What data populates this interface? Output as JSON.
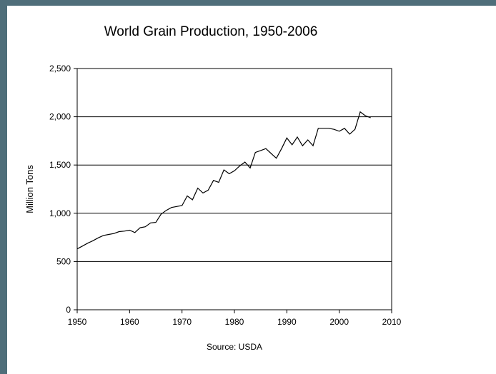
{
  "chart_data": {
    "type": "line",
    "title": "World Grain Production, 1950-2006",
    "xlabel": "",
    "ylabel": "Million Tons",
    "source": "Source: USDA",
    "xlim": [
      1950,
      2010
    ],
    "ylim": [
      0,
      2500
    ],
    "x_ticks": [
      "1950",
      "1960",
      "1970",
      "1980",
      "1990",
      "2000",
      "2010"
    ],
    "y_ticks": [
      "0",
      "500",
      "1,000",
      "1,500",
      "2,000",
      "2,500"
    ],
    "grid": "horizontal",
    "colors": {
      "line": "#000000",
      "grid": "#000000",
      "background": "#ffffff",
      "page": "#4f6e7a"
    },
    "series": [
      {
        "x": [
          1950,
          1951,
          1952,
          1953,
          1954,
          1955,
          1956,
          1957,
          1958,
          1959,
          1960,
          1961,
          1962,
          1963,
          1964,
          1965,
          1966,
          1967,
          1968,
          1969,
          1970,
          1971,
          1972,
          1973,
          1974,
          1975,
          1976,
          1977,
          1978,
          1979,
          1980,
          1981,
          1982,
          1983,
          1984,
          1985,
          1986,
          1987,
          1988,
          1989,
          1990,
          1991,
          1992,
          1993,
          1994,
          1995,
          1996,
          1997,
          1998,
          1999,
          2000,
          2001,
          2002,
          2003,
          2004,
          2005,
          2006
        ],
        "values": [
          631,
          660,
          690,
          715,
          745,
          770,
          780,
          790,
          810,
          815,
          825,
          800,
          850,
          860,
          900,
          905,
          990,
          1030,
          1060,
          1070,
          1080,
          1180,
          1140,
          1260,
          1210,
          1240,
          1340,
          1320,
          1450,
          1410,
          1440,
          1490,
          1530,
          1470,
          1630,
          1650,
          1670,
          1620,
          1570,
          1670,
          1780,
          1710,
          1790,
          1700,
          1760,
          1700,
          1880,
          1880,
          1880,
          1870,
          1850,
          1880,
          1820,
          1870,
          2050,
          2010,
          1990
        ]
      }
    ]
  }
}
